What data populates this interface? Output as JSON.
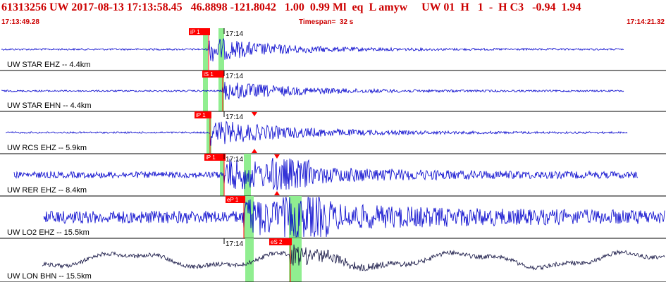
{
  "header": {
    "line1": "61313256 UW 2017-08-13 17:13:58.45   46.8898 -121.8042   1.00  0.99 Ml  eq  L amyw     UW 01  H   1  -  H C3   -0.94  1.94",
    "time_start": "17:13:49.28",
    "timespan": "Timespan=  32 s",
    "time_end": "17:14:21.32"
  },
  "colors": {
    "header_text": "#cc0000",
    "trace": "#0000cc",
    "trace_lon": "#101040",
    "highlight": "#90ee90",
    "pick": "#ff0000",
    "divider": "#000000"
  },
  "panels": [
    {
      "label": "UW STAR EHZ -- 4.4km",
      "minute_label": "17:14",
      "picks": [
        {
          "text": "iP 1",
          "kind": "P"
        }
      ],
      "triangles": []
    },
    {
      "label": "UW STAR EHN -- 4.4km",
      "minute_label": "17:14",
      "picks": [
        {
          "text": "iS 1",
          "kind": "S"
        }
      ],
      "triangles": []
    },
    {
      "label": "UW RCS EHZ -- 5.9km",
      "minute_label": "17:14",
      "picks": [
        {
          "text": "iP 1",
          "kind": "P"
        }
      ],
      "triangles": [
        {
          "kind": "S"
        }
      ]
    },
    {
      "label": "UW RER EHZ -- 8.4km",
      "minute_label": "17:14",
      "picks": [
        {
          "text": "iP 1",
          "kind": "P"
        }
      ],
      "triangles": [
        {
          "kind": "S"
        }
      ]
    },
    {
      "label": "UW LO2 EHZ -- 15.5km",
      "minute_label": "",
      "picks": [
        {
          "text": "eP 1",
          "kind": "P"
        }
      ],
      "triangles": []
    },
    {
      "label": "UW LON BHN -- 15.5km",
      "minute_label": "17:14",
      "picks": [
        {
          "text": "eS 2",
          "kind": "S"
        }
      ],
      "triangles": []
    }
  ]
}
